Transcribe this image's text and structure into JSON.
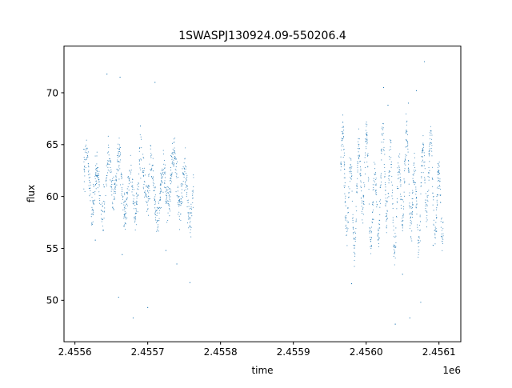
{
  "chart_data": {
    "type": "scatter",
    "title": "1SWASPJ130924.09-550206.4",
    "xlabel": "time",
    "ylabel": "flux",
    "x_offset_label": "1e6",
    "xlim": [
      2455585,
      2456130
    ],
    "ylim": [
      46,
      74.5
    ],
    "x_ticks": [
      2455600,
      2455700,
      2455800,
      2455900,
      2456000,
      2456100
    ],
    "x_tick_labels": [
      "2.4556",
      "2.4557",
      "2.4558",
      "2.4559",
      "2.4560",
      "2.4561"
    ],
    "y_ticks": [
      50,
      55,
      60,
      65,
      70
    ],
    "y_tick_labels": [
      "50",
      "55",
      "60",
      "65",
      "70"
    ],
    "grid": false,
    "marker_color": "#1f77b4",
    "series": [
      {
        "name": "",
        "segments": [
          {
            "x_start": 2455612,
            "x_end": 2455763,
            "center": 61,
            "amplitude": 2.2,
            "period_days": 15,
            "noise": 1.6,
            "points": 900
          },
          {
            "x_start": 2455965,
            "x_end": 2456106,
            "center": 60.5,
            "amplitude": 4.0,
            "period_days": 11,
            "noise": 1.5,
            "points": 900
          }
        ],
        "outliers": [
          [
            2455644,
            71.8
          ],
          [
            2455662,
            71.5
          ],
          [
            2455710,
            71.0
          ],
          [
            2455680,
            48.3
          ],
          [
            2455700,
            49.3
          ],
          [
            2455660,
            50.3
          ],
          [
            2455758,
            51.7
          ],
          [
            2455740,
            53.5
          ],
          [
            2455665,
            54.4
          ],
          [
            2455628,
            55.8
          ],
          [
            2455690,
            66.8
          ],
          [
            2455725,
            54.8
          ],
          [
            2456040,
            47.7
          ],
          [
            2456060,
            48.3
          ],
          [
            2456075,
            49.8
          ],
          [
            2456024,
            70.5
          ],
          [
            2456069,
            70.2
          ],
          [
            2456080,
            73.0
          ],
          [
            2456058,
            69.0
          ],
          [
            2455980,
            51.6
          ],
          [
            2456030,
            68.8
          ],
          [
            2456092,
            55.3
          ],
          [
            2456050,
            52.5
          ],
          [
            2456010,
            57.8
          ]
        ]
      }
    ]
  }
}
